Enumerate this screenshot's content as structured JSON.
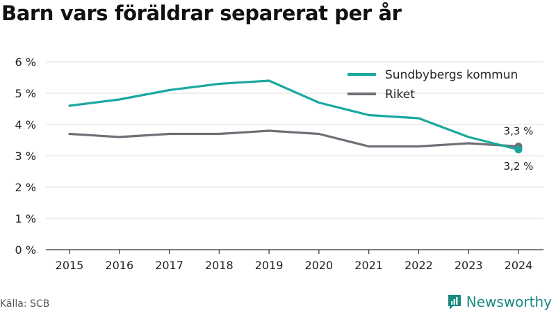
{
  "title": "Barn vars föräldrar separerat per år",
  "source": "Källa: SCB",
  "brand": "Newsworthy",
  "colors": {
    "accent": "#1aa89e",
    "secondary": "#6f6f77",
    "brand": "#1a8a82"
  },
  "chart_data": {
    "type": "line",
    "x": [
      "2015",
      "2016",
      "2017",
      "2018",
      "2019",
      "2020",
      "2021",
      "2022",
      "2023",
      "2024"
    ],
    "ylim": [
      0,
      6
    ],
    "yticks": [
      "0 %",
      "1 %",
      "2 %",
      "3 %",
      "4 %",
      "5 %",
      "6 %"
    ],
    "grid": true,
    "legend_position": "top-right",
    "series": [
      {
        "name": "Sundbybergs kommun",
        "color": "#1aa89e",
        "values": [
          4.6,
          4.8,
          5.1,
          5.3,
          5.4,
          4.7,
          4.3,
          4.2,
          3.6,
          3.2
        ],
        "end_label": "3,2 %"
      },
      {
        "name": "Riket",
        "color": "#6f6f77",
        "values": [
          3.7,
          3.6,
          3.7,
          3.7,
          3.8,
          3.7,
          3.3,
          3.3,
          3.4,
          3.3
        ],
        "end_label": "3,3 %"
      }
    ]
  }
}
